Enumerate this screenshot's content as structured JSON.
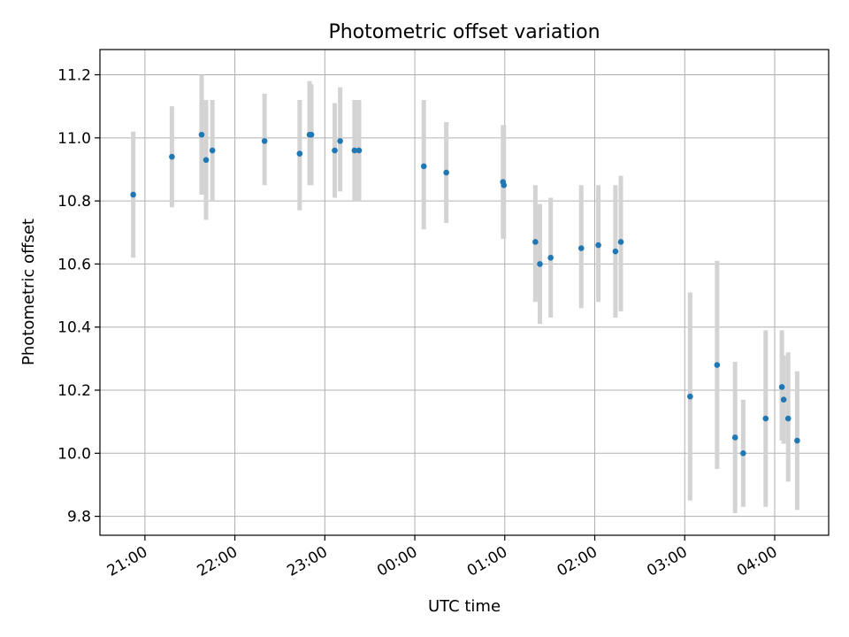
{
  "chart_data": {
    "type": "scatter",
    "title": "Photometric offset variation",
    "xlabel": "UTC time",
    "ylabel": "Photometric offset",
    "x_unit": "UTC hours (continuous past midnight)",
    "xlim": [
      20.5,
      28.6
    ],
    "ylim": [
      9.74,
      11.28
    ],
    "grid": true,
    "x_ticks": [
      {
        "value": 21,
        "label": "21:00"
      },
      {
        "value": 22,
        "label": "22:00"
      },
      {
        "value": 23,
        "label": "23:00"
      },
      {
        "value": 24,
        "label": "00:00"
      },
      {
        "value": 25,
        "label": "01:00"
      },
      {
        "value": 26,
        "label": "02:00"
      },
      {
        "value": 27,
        "label": "03:00"
      },
      {
        "value": 28,
        "label": "04:00"
      }
    ],
    "y_ticks": [
      {
        "value": 9.8,
        "label": "9.8"
      },
      {
        "value": 10.0,
        "label": "10.0"
      },
      {
        "value": 10.2,
        "label": "10.2"
      },
      {
        "value": 10.4,
        "label": "10.4"
      },
      {
        "value": 10.6,
        "label": "10.6"
      },
      {
        "value": 10.8,
        "label": "10.8"
      },
      {
        "value": 11.0,
        "label": "11.0"
      },
      {
        "value": 11.2,
        "label": "11.2"
      }
    ],
    "point_color": "#1f77b4",
    "errorbar_color": "#d3d3d3",
    "points": [
      {
        "x": 20.87,
        "y": 10.82,
        "lo": 10.62,
        "hi": 11.02
      },
      {
        "x": 21.3,
        "y": 10.94,
        "lo": 10.78,
        "hi": 11.1
      },
      {
        "x": 21.63,
        "y": 11.01,
        "lo": 10.82,
        "hi": 11.2
      },
      {
        "x": 21.68,
        "y": 10.93,
        "lo": 10.74,
        "hi": 11.12
      },
      {
        "x": 21.75,
        "y": 10.96,
        "lo": 10.8,
        "hi": 11.12
      },
      {
        "x": 22.33,
        "y": 10.99,
        "lo": 10.85,
        "hi": 11.14
      },
      {
        "x": 22.72,
        "y": 10.95,
        "lo": 10.77,
        "hi": 11.12
      },
      {
        "x": 22.83,
        "y": 11.01,
        "lo": 10.85,
        "hi": 11.18
      },
      {
        "x": 22.85,
        "y": 11.01,
        "lo": 10.85,
        "hi": 11.17
      },
      {
        "x": 23.11,
        "y": 10.96,
        "lo": 10.81,
        "hi": 11.11
      },
      {
        "x": 23.17,
        "y": 10.99,
        "lo": 10.83,
        "hi": 11.16
      },
      {
        "x": 23.33,
        "y": 10.96,
        "lo": 10.8,
        "hi": 11.12
      },
      {
        "x": 23.38,
        "y": 10.96,
        "lo": 10.8,
        "hi": 11.12
      },
      {
        "x": 24.1,
        "y": 10.91,
        "lo": 10.71,
        "hi": 11.12
      },
      {
        "x": 24.35,
        "y": 10.89,
        "lo": 10.73,
        "hi": 11.05
      },
      {
        "x": 24.98,
        "y": 10.86,
        "lo": 10.68,
        "hi": 11.04
      },
      {
        "x": 24.99,
        "y": 10.85,
        "lo": 10.68,
        "hi": 11.04
      },
      {
        "x": 25.34,
        "y": 10.67,
        "lo": 10.48,
        "hi": 10.85
      },
      {
        "x": 25.39,
        "y": 10.6,
        "lo": 10.41,
        "hi": 10.79
      },
      {
        "x": 25.51,
        "y": 10.62,
        "lo": 10.43,
        "hi": 10.81
      },
      {
        "x": 25.85,
        "y": 10.65,
        "lo": 10.46,
        "hi": 10.85
      },
      {
        "x": 26.04,
        "y": 10.66,
        "lo": 10.48,
        "hi": 10.85
      },
      {
        "x": 26.23,
        "y": 10.64,
        "lo": 10.43,
        "hi": 10.85
      },
      {
        "x": 26.29,
        "y": 10.67,
        "lo": 10.45,
        "hi": 10.88
      },
      {
        "x": 27.06,
        "y": 10.18,
        "lo": 9.85,
        "hi": 10.51
      },
      {
        "x": 27.36,
        "y": 10.28,
        "lo": 9.95,
        "hi": 10.61
      },
      {
        "x": 27.56,
        "y": 10.05,
        "lo": 9.81,
        "hi": 10.29
      },
      {
        "x": 27.65,
        "y": 10.0,
        "lo": 9.83,
        "hi": 10.17
      },
      {
        "x": 27.9,
        "y": 10.11,
        "lo": 9.83,
        "hi": 10.39
      },
      {
        "x": 28.08,
        "y": 10.21,
        "lo": 10.04,
        "hi": 10.39
      },
      {
        "x": 28.1,
        "y": 10.17,
        "lo": 10.03,
        "hi": 10.31
      },
      {
        "x": 28.15,
        "y": 10.11,
        "lo": 9.91,
        "hi": 10.32
      },
      {
        "x": 28.25,
        "y": 10.04,
        "lo": 9.82,
        "hi": 10.26
      }
    ]
  }
}
